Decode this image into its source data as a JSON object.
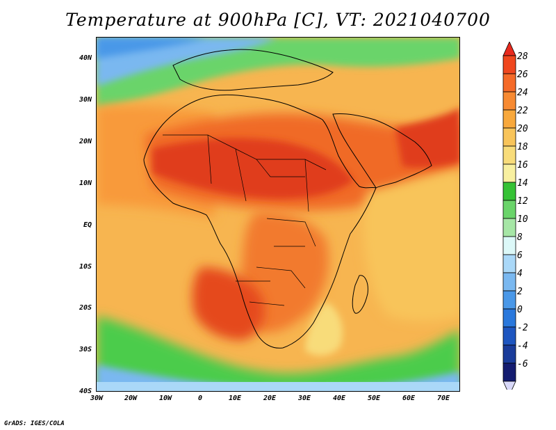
{
  "title": "Temperature at 900hPa [C], VT: 2021040700",
  "footer": "GrADS: IGES/COLA",
  "map": {
    "lon_range": [
      -30,
      75
    ],
    "lat_range": [
      -40,
      45
    ],
    "lat_ticks": [
      "40N",
      "30N",
      "20N",
      "10N",
      "EQ",
      "10S",
      "20S",
      "30S",
      "40S"
    ],
    "lon_ticks": [
      "30W",
      "20W",
      "10W",
      "0",
      "10E",
      "20E",
      "30E",
      "40E",
      "50E",
      "60E",
      "70E"
    ],
    "fill_regions": [
      {
        "name": "ocean-temperate-north",
        "color": "#6cd26c"
      },
      {
        "name": "saharan-heat",
        "color": "#dc3c1e"
      },
      {
        "name": "atlantic-warm",
        "color": "#f5a542"
      },
      {
        "name": "indian-ocean-warm",
        "color": "#f7c35c"
      },
      {
        "name": "southern-ocean-cool",
        "color": "#3cc83c"
      }
    ]
  },
  "colorbar": {
    "labels": [
      "28",
      "26",
      "24",
      "22",
      "20",
      "18",
      "16",
      "14",
      "12",
      "10",
      "8",
      "6",
      "4",
      "2",
      "0",
      "-2",
      "-4",
      "-6"
    ],
    "colors": [
      "#e82a1e",
      "#f0471e",
      "#f56a28",
      "#f78a32",
      "#f8a83c",
      "#f8c45a",
      "#f8dc7a",
      "#f8f0a0",
      "#36c236",
      "#6ad46a",
      "#a6e6a6",
      "#dcf8f8",
      "#aad8f8",
      "#7ab8f0",
      "#4a98e8",
      "#2a78dc",
      "#1e56c0",
      "#1a3c9a",
      "#141c70",
      "#d8d8f8"
    ]
  }
}
